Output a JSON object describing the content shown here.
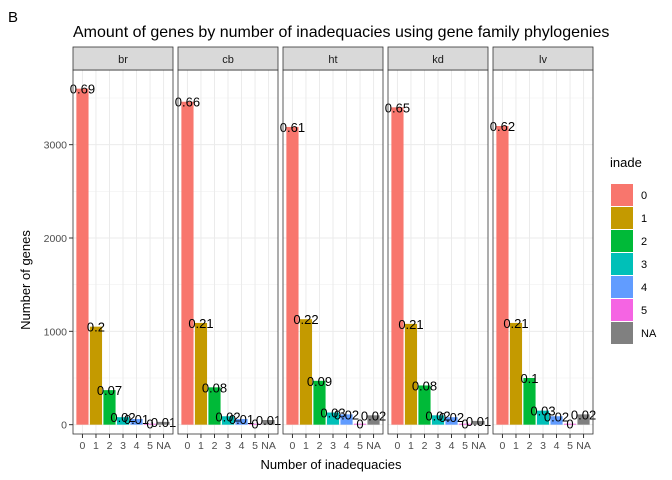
{
  "panel_tag": "B",
  "chart_data": {
    "type": "bar",
    "title": "Amount of genes by number of inadequacies using gene family phylogenies",
    "xlabel": "Number of inadequacies",
    "ylabel": "Number of genes",
    "categories": [
      "0",
      "1",
      "2",
      "3",
      "4",
      "5",
      "NA"
    ],
    "ylim": [
      -100,
      3800
    ],
    "yticks": [
      0,
      1000,
      2000,
      3000
    ],
    "grid": true,
    "legend": {
      "title": "inade",
      "placement": "right",
      "entries": [
        "0",
        "1",
        "2",
        "3",
        "4",
        "5",
        "NA"
      ],
      "colors": [
        "#F8766D",
        "#C49A00",
        "#00BA38",
        "#00C0B8",
        "#619CFF",
        "#F564E3",
        "#808080"
      ]
    },
    "facets": [
      {
        "name": "br",
        "values": [
          3600,
          1050,
          370,
          80,
          60,
          10,
          30
        ],
        "labels": [
          "0.69",
          "0.2",
          "0.07",
          "0.02",
          "0.01",
          "0",
          "0.01"
        ]
      },
      {
        "name": "cb",
        "values": [
          3460,
          1090,
          400,
          90,
          60,
          10,
          50
        ],
        "labels": [
          "0.66",
          "0.21",
          "0.08",
          "0.02",
          "0.01",
          "0",
          "0.01"
        ]
      },
      {
        "name": "ht",
        "values": [
          3190,
          1130,
          470,
          130,
          110,
          10,
          100
        ],
        "labels": [
          "0.61",
          "0.22",
          "0.09",
          "0.03",
          "0.02",
          "0",
          "0.02"
        ]
      },
      {
        "name": "kd",
        "values": [
          3400,
          1080,
          420,
          100,
          80,
          10,
          40
        ],
        "labels": [
          "0.65",
          "0.21",
          "0.08",
          "0.02",
          "0.02",
          "0",
          "0.01"
        ]
      },
      {
        "name": "lv",
        "values": [
          3200,
          1090,
          500,
          150,
          90,
          10,
          110
        ],
        "labels": [
          "0.62",
          "0.21",
          "0.1",
          "0.03",
          "0.02",
          "0",
          "0.02"
        ]
      }
    ]
  }
}
